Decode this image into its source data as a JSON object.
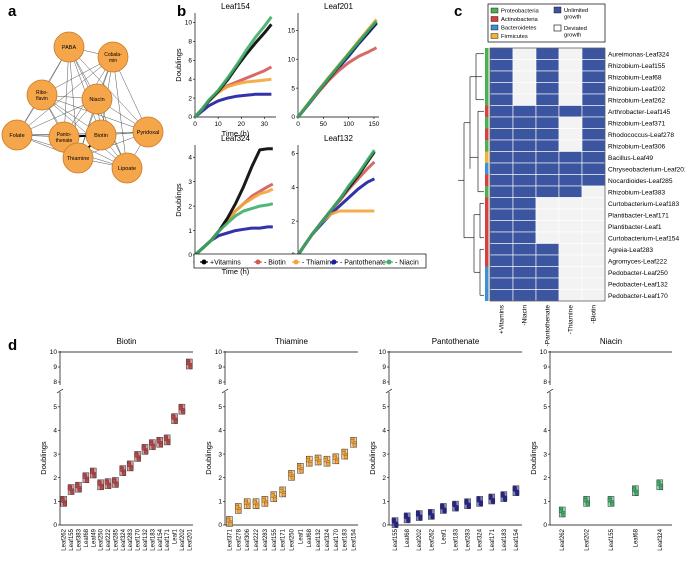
{
  "panel_labels": {
    "a": "a",
    "b": "b",
    "c": "c",
    "d": "d"
  },
  "network": {
    "nodes": [
      "PABA",
      "Cobala-min",
      "Ribo-flavin",
      "Niacin",
      "Folate",
      "Pyridoxal",
      "Panto-thenate",
      "Biotin",
      "Thiamine",
      "Lipoate"
    ]
  },
  "growth": {
    "xlabel": "Time (h)",
    "ylabel": "Doublings",
    "legend": [
      "+Vitamins",
      "- Biotin",
      "- Thiamine",
      "- Pantothenate",
      "- Niacin"
    ],
    "colors": {
      "vitamins": "#000000",
      "biotin": "#d25a55",
      "thiamine": "#f3a53b",
      "pantothenate": "#1c1d9e",
      "niacin": "#3fae6a"
    }
  },
  "heatmap": {
    "legend": {
      "phyla": [
        {
          "name": "Proteobacteria",
          "color": "#4caf50"
        },
        {
          "name": "Actinobacteria",
          "color": "#d84040"
        },
        {
          "name": "Bacteroidetes",
          "color": "#3d8fd6"
        },
        {
          "name": "Firmicutes",
          "color": "#f2b233"
        }
      ],
      "unlimited": "Unlimited growth",
      "deviated": "Deviated growth"
    },
    "conditions": [
      "+Vitamins",
      "-Niacin",
      "-Pantothenate",
      "-Thiamine",
      "-Biotin"
    ],
    "strains": [
      "Aureimonas-Leaf324",
      "Rhizobium-Leaf155",
      "Rhizobium-Leaf68",
      "Rhizobium-Leaf202",
      "Rhizobium-Leaf262",
      "Arthrobacter-Leaf145",
      "Rhizobium-Leaf371",
      "Rhodococcus-Leaf278",
      "Rhizobium-Leaf306",
      "Bacillus-Leaf49",
      "Chryseobacterium-Leaf201",
      "Nocardioides-Leaf285",
      "Rhizobium-Leaf383",
      "Curtobacterium-Leaf183",
      "Plantibacter-Leaf171",
      "Plantibacter-Leaf1",
      "Curtobacterium-Leaf154",
      "Agreia-Leaf283",
      "Agromyces-Leaf222",
      "Pedobacter-Leaf250",
      "Pedobacter-Leaf132",
      "Pedobacter-Leaf170"
    ],
    "phylum": [
      "Proteobacteria",
      "Proteobacteria",
      "Proteobacteria",
      "Proteobacteria",
      "Proteobacteria",
      "Actinobacteria",
      "Proteobacteria",
      "Actinobacteria",
      "Proteobacteria",
      "Firmicutes",
      "Bacteroidetes",
      "Actinobacteria",
      "Proteobacteria",
      "Actinobacteria",
      "Actinobacteria",
      "Actinobacteria",
      "Actinobacteria",
      "Actinobacteria",
      "Actinobacteria",
      "Bacteroidetes",
      "Bacteroidetes",
      "Bacteroidetes"
    ],
    "matrix": [
      [
        1,
        0,
        1,
        0,
        1
      ],
      [
        1,
        0,
        1,
        0,
        1
      ],
      [
        1,
        0,
        1,
        0,
        1
      ],
      [
        1,
        0,
        1,
        0,
        1
      ],
      [
        1,
        0,
        1,
        0,
        1
      ],
      [
        1,
        1,
        1,
        1,
        1
      ],
      [
        1,
        1,
        1,
        0,
        1
      ],
      [
        1,
        1,
        1,
        0,
        1
      ],
      [
        1,
        1,
        1,
        0,
        1
      ],
      [
        1,
        1,
        1,
        1,
        1
      ],
      [
        1,
        1,
        1,
        1,
        1
      ],
      [
        1,
        1,
        1,
        1,
        1
      ],
      [
        1,
        1,
        1,
        1,
        0
      ],
      [
        1,
        1,
        0,
        0,
        0
      ],
      [
        1,
        1,
        0,
        0,
        0
      ],
      [
        1,
        1,
        0,
        0,
        0
      ],
      [
        1,
        1,
        0,
        0,
        0
      ],
      [
        1,
        1,
        1,
        0,
        0
      ],
      [
        1,
        1,
        1,
        0,
        0
      ],
      [
        1,
        1,
        1,
        0,
        0
      ],
      [
        1,
        1,
        1,
        0,
        0
      ],
      [
        1,
        1,
        1,
        0,
        0
      ]
    ]
  },
  "chart_data": [
    {
      "type": "line",
      "title": "Leaf154",
      "xlabel": "Time (h)",
      "ylabel": "Doublings",
      "xlim": [
        0,
        35
      ],
      "ylim": [
        0,
        11
      ],
      "xticks": [
        0,
        10,
        20,
        30
      ],
      "yticks": [
        0,
        2,
        4,
        6,
        8,
        10
      ],
      "series": [
        {
          "name": "+Vitamins",
          "x": [
            0,
            3,
            6,
            10,
            14,
            18,
            22,
            26,
            30,
            33
          ],
          "y": [
            0,
            0.8,
            1.7,
            2.7,
            3.9,
            5.3,
            6.6,
            7.8,
            8.9,
            9.8
          ]
        },
        {
          "name": "- Biotin",
          "x": [
            0,
            3,
            6,
            10,
            14,
            18,
            22,
            26,
            30,
            33
          ],
          "y": [
            0,
            0.8,
            1.7,
            2.6,
            3.3,
            3.7,
            4.1,
            4.5,
            4.9,
            5.3
          ]
        },
        {
          "name": "- Thiamine",
          "x": [
            0,
            3,
            6,
            10,
            14,
            18,
            22,
            26,
            30,
            33
          ],
          "y": [
            0,
            0.8,
            1.7,
            2.6,
            3.2,
            3.5,
            3.7,
            3.8,
            3.9,
            4.0
          ]
        },
        {
          "name": "- Pantothenate",
          "x": [
            0,
            3,
            6,
            10,
            14,
            18,
            22,
            26,
            30,
            33
          ],
          "y": [
            0,
            0.6,
            1.2,
            1.7,
            2.0,
            2.2,
            2.3,
            2.4,
            2.4,
            2.4
          ]
        },
        {
          "name": "- Niacin",
          "x": [
            0,
            3,
            6,
            10,
            14,
            18,
            22,
            26,
            30,
            33
          ],
          "y": [
            0,
            0.8,
            1.8,
            2.8,
            4.1,
            5.5,
            7.0,
            8.4,
            9.6,
            10.6
          ]
        }
      ]
    },
    {
      "type": "line",
      "title": "Leaf201",
      "xlabel": "Time (h)",
      "ylabel": "Doublings",
      "xlim": [
        0,
        160
      ],
      "ylim": [
        0,
        18
      ],
      "xticks": [
        0,
        50,
        100,
        150
      ],
      "yticks": [
        0,
        5,
        10,
        15
      ],
      "series": [
        {
          "name": "+Vitamins",
          "x": [
            0,
            20,
            40,
            60,
            80,
            100,
            120,
            140,
            155
          ],
          "y": [
            0,
            2.2,
            4.5,
            6.6,
            8.7,
            10.8,
            12.9,
            14.9,
            16.4
          ]
        },
        {
          "name": "- Biotin",
          "x": [
            0,
            20,
            40,
            60,
            80,
            100,
            120,
            140,
            155
          ],
          "y": [
            0,
            2.2,
            4.3,
            6.3,
            8.0,
            9.4,
            10.5,
            11.3,
            12.0
          ]
        },
        {
          "name": "- Thiamine",
          "x": [
            0,
            20,
            40,
            60,
            80,
            100,
            120,
            140,
            155
          ],
          "y": [
            0,
            2.3,
            4.6,
            6.8,
            8.9,
            11.0,
            13.2,
            15.3,
            16.9
          ]
        },
        {
          "name": "- Pantothenate",
          "x": [
            0,
            20,
            40,
            60,
            80,
            100,
            120,
            140,
            155
          ],
          "y": [
            0,
            2.1,
            4.3,
            6.4,
            8.5,
            10.5,
            12.7,
            14.7,
            16.2
          ]
        },
        {
          "name": "- Niacin",
          "x": [
            0,
            20,
            40,
            60,
            80,
            100,
            120,
            140,
            155
          ],
          "y": [
            0,
            2.2,
            4.5,
            6.7,
            8.8,
            10.9,
            13.0,
            15.1,
            16.6
          ]
        }
      ]
    },
    {
      "type": "line",
      "title": "Leaf324",
      "xlabel": "Time (h)",
      "ylabel": "Doublings",
      "xlim": [
        0,
        50
      ],
      "ylim": [
        0,
        4.5
      ],
      "xticks": [
        0,
        20,
        40
      ],
      "yticks": [
        0,
        1,
        2,
        3,
        4
      ],
      "series": [
        {
          "name": "+Vitamins",
          "x": [
            0,
            5,
            10,
            15,
            20,
            25,
            30,
            35,
            40,
            45,
            48
          ],
          "y": [
            0,
            0.3,
            0.6,
            1.0,
            1.5,
            2.1,
            2.8,
            3.6,
            4.3,
            4.35,
            4.35
          ]
        },
        {
          "name": "- Biotin",
          "x": [
            0,
            5,
            10,
            15,
            20,
            25,
            30,
            35,
            40,
            45,
            48
          ],
          "y": [
            0,
            0.3,
            0.6,
            1.0,
            1.4,
            1.8,
            2.1,
            2.4,
            2.6,
            2.8,
            2.9
          ]
        },
        {
          "name": "- Thiamine",
          "x": [
            0,
            5,
            10,
            15,
            20,
            25,
            30,
            35,
            40,
            45,
            48
          ],
          "y": [
            0,
            0.3,
            0.6,
            1.0,
            1.4,
            1.8,
            2.1,
            2.3,
            2.5,
            2.6,
            2.7
          ]
        },
        {
          "name": "- Pantothenate",
          "x": [
            0,
            5,
            10,
            15,
            20,
            25,
            30,
            35,
            40,
            45,
            48
          ],
          "y": [
            0,
            0.3,
            0.6,
            0.8,
            0.9,
            1.0,
            1.05,
            1.1,
            1.1,
            1.15,
            1.15
          ]
        },
        {
          "name": "- Niacin",
          "x": [
            0,
            5,
            10,
            15,
            20,
            25,
            30,
            35,
            40,
            45,
            48
          ],
          "y": [
            0,
            0.3,
            0.6,
            1.0,
            1.3,
            1.6,
            1.8,
            1.9,
            2.0,
            2.05,
            2.1
          ]
        }
      ]
    },
    {
      "type": "line",
      "title": "Leaf132",
      "xlabel": "Time (h)",
      "ylabel": "Doublings",
      "xlim": [
        0,
        35
      ],
      "ylim": [
        0,
        6.5
      ],
      "xticks": [
        0,
        10,
        20,
        30
      ],
      "yticks": [
        0,
        2,
        4,
        6
      ],
      "series": [
        {
          "name": "+Vitamins",
          "x": [
            0,
            3,
            6,
            10,
            14,
            18,
            22,
            26,
            30,
            33
          ],
          "y": [
            0,
            0.6,
            1.2,
            1.9,
            2.6,
            3.3,
            4.0,
            4.7,
            5.5,
            6.1
          ]
        },
        {
          "name": "- Biotin",
          "x": [
            0,
            3,
            6,
            10,
            14,
            18,
            22,
            26,
            30,
            33
          ],
          "y": [
            0,
            0.6,
            1.2,
            1.9,
            2.6,
            3.2,
            3.9,
            4.5,
            5.1,
            5.5
          ]
        },
        {
          "name": "- Thiamine",
          "x": [
            0,
            3,
            6,
            10,
            14,
            18,
            22,
            26,
            30,
            33
          ],
          "y": [
            0,
            0.6,
            1.2,
            1.9,
            2.4,
            2.6,
            2.6,
            2.6,
            2.6,
            2.6
          ]
        },
        {
          "name": "- Pantothenate",
          "x": [
            0,
            3,
            6,
            10,
            14,
            18,
            22,
            26,
            30,
            33
          ],
          "y": [
            0,
            0.6,
            1.2,
            1.8,
            2.4,
            2.9,
            3.4,
            3.9,
            4.3,
            4.5
          ]
        },
        {
          "name": "- Niacin",
          "x": [
            0,
            3,
            6,
            10,
            14,
            18,
            22,
            26,
            30,
            33
          ],
          "y": [
            0,
            0.6,
            1.2,
            1.9,
            2.6,
            3.3,
            4.1,
            4.8,
            5.6,
            6.2
          ]
        }
      ]
    },
    {
      "type": "box",
      "title": "Biotin",
      "ylabel": "Doublings",
      "color": "#b8484a",
      "categories": [
        "Leaf262",
        "Leaf155",
        "Leaf383",
        "Leaf68",
        "Leaf49",
        "Leaf250",
        "Leaf222",
        "Leaf285",
        "Leaf324",
        "Leaf283",
        "Leaf170",
        "Leaf132",
        "Leaf183",
        "Leaf154",
        "Leaf171",
        "Leaf1",
        "Leaf202",
        "Leaf201"
      ],
      "values": [
        1.0,
        1.5,
        1.6,
        2.0,
        2.2,
        1.7,
        1.75,
        1.8,
        2.3,
        2.5,
        2.9,
        3.2,
        3.4,
        3.5,
        3.6,
        4.5,
        4.9,
        9.2
      ]
    },
    {
      "type": "box",
      "title": "Thiamine",
      "ylabel": "Doublings",
      "color": "#f3a53b",
      "categories": [
        "Leaf371",
        "Leaf278",
        "Leaf306",
        "Leaf222",
        "Leaf283",
        "Leaf155",
        "Leaf171",
        "Leaf250",
        "Leaf1",
        "Leaf68",
        "Leaf132",
        "Leaf324",
        "Leaf170",
        "Leaf183",
        "Leaf154"
      ],
      "values": [
        0.15,
        0.7,
        0.9,
        0.9,
        1.0,
        1.2,
        1.4,
        2.1,
        2.4,
        2.7,
        2.75,
        2.7,
        2.8,
        3.0,
        3.5
      ]
    },
    {
      "type": "box",
      "title": "Pantothenate",
      "ylabel": "Doublings",
      "color": "#24238f",
      "categories": [
        "Leaf155",
        "Leaf68",
        "Leaf202",
        "Leaf262",
        "Leaf1",
        "Leaf183",
        "Leaf283",
        "Leaf324",
        "Leaf171",
        "Leaf183",
        "Leaf154"
      ],
      "values": [
        0.1,
        0.3,
        0.4,
        0.45,
        0.7,
        0.8,
        0.9,
        1.0,
        1.1,
        1.2,
        1.45
      ]
    },
    {
      "type": "box",
      "title": "Niacin",
      "ylabel": "Doublings",
      "color": "#3fae6a",
      "categories": [
        "Leaf262",
        "Leaf202",
        "Leaf155",
        "Leaf68",
        "Leaf324"
      ],
      "values": [
        0.55,
        1.0,
        1.0,
        1.45,
        1.7
      ]
    }
  ]
}
